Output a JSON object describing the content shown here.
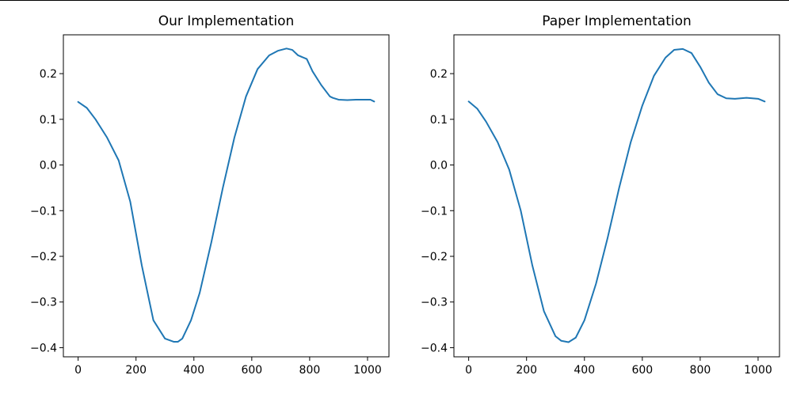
{
  "chart_data": [
    {
      "type": "line",
      "title": "Our Implementation",
      "xlabel": "",
      "ylabel": "",
      "xlim": [
        -51,
        1074
      ],
      "ylim": [
        -0.42,
        0.285
      ],
      "xticks": [
        0,
        200,
        400,
        600,
        800,
        1000
      ],
      "yticks": [
        -0.4,
        -0.3,
        -0.2,
        -0.1,
        0.0,
        0.1,
        0.2
      ],
      "ytick_labels": [
        "−0.4",
        "−0.3",
        "−0.2",
        "−0.1",
        "0.0",
        "0.1",
        "0.2"
      ],
      "xtick_labels": [
        "0",
        "200",
        "400",
        "600",
        "800",
        "1000"
      ],
      "grid": false,
      "color": "#1f77b4",
      "series": [
        {
          "x": [
            0,
            30,
            60,
            100,
            140,
            180,
            220,
            260,
            300,
            330,
            345,
            360,
            390,
            420,
            460,
            500,
            540,
            580,
            620,
            660,
            690,
            720,
            740,
            760,
            790,
            810,
            840,
            870,
            880,
            900,
            930,
            960,
            990,
            1010,
            1023
          ],
          "y": [
            0.138,
            0.125,
            0.1,
            0.06,
            0.01,
            -0.08,
            -0.22,
            -0.34,
            -0.38,
            -0.387,
            -0.387,
            -0.38,
            -0.34,
            -0.28,
            -0.17,
            -0.05,
            0.06,
            0.15,
            0.21,
            0.24,
            0.25,
            0.255,
            0.252,
            0.24,
            0.232,
            0.205,
            0.175,
            0.15,
            0.147,
            0.143,
            0.142,
            0.143,
            0.143,
            0.143,
            0.139
          ]
        }
      ]
    },
    {
      "type": "line",
      "title": "Paper Implementation",
      "xlabel": "",
      "ylabel": "",
      "xlim": [
        -51,
        1074
      ],
      "ylim": [
        -0.42,
        0.285
      ],
      "xticks": [
        0,
        200,
        400,
        600,
        800,
        1000
      ],
      "yticks": [
        -0.4,
        -0.3,
        -0.2,
        -0.1,
        0.0,
        0.1,
        0.2
      ],
      "ytick_labels": [
        "−0.4",
        "−0.3",
        "−0.2",
        "−0.1",
        "0.0",
        "0.1",
        "0.2"
      ],
      "xtick_labels": [
        "0",
        "200",
        "400",
        "600",
        "800",
        "1000"
      ],
      "grid": false,
      "color": "#1f77b4",
      "series": [
        {
          "x": [
            0,
            30,
            60,
            100,
            140,
            180,
            220,
            260,
            300,
            320,
            345,
            370,
            400,
            440,
            480,
            520,
            560,
            600,
            640,
            680,
            710,
            740,
            770,
            800,
            830,
            860,
            890,
            920,
            960,
            1000,
            1023
          ],
          "y": [
            0.139,
            0.123,
            0.095,
            0.05,
            -0.01,
            -0.1,
            -0.22,
            -0.32,
            -0.375,
            -0.385,
            -0.388,
            -0.378,
            -0.34,
            -0.26,
            -0.16,
            -0.05,
            0.05,
            0.13,
            0.195,
            0.235,
            0.252,
            0.254,
            0.245,
            0.215,
            0.18,
            0.155,
            0.146,
            0.145,
            0.147,
            0.145,
            0.139
          ]
        }
      ]
    }
  ]
}
